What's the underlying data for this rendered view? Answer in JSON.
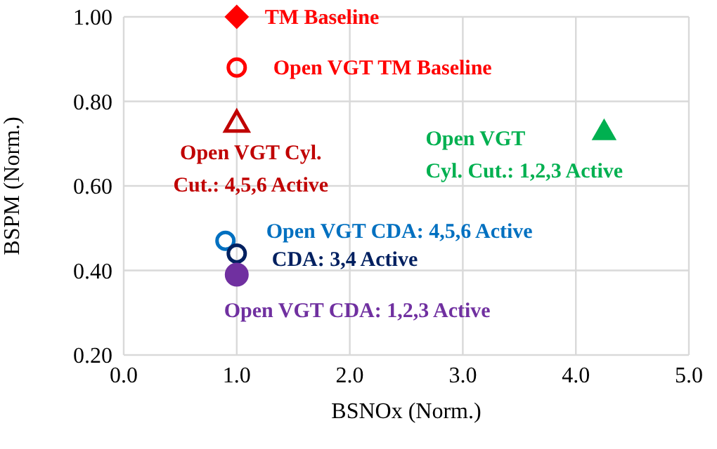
{
  "chart_data": {
    "type": "scatter",
    "xlabel": "BSNOx  (Norm.)",
    "ylabel": "BSPM (Norm.)",
    "xlim": [
      0,
      5
    ],
    "xticks": [
      {
        "value": 0,
        "label": "0.0"
      },
      {
        "value": 1,
        "label": "1.0"
      },
      {
        "value": 2,
        "label": "2.0"
      },
      {
        "value": 3,
        "label": "3.0"
      },
      {
        "value": 4,
        "label": "4.0"
      },
      {
        "value": 5,
        "label": "5.0"
      }
    ],
    "ylim": [
      0.2,
      1.0
    ],
    "yticks": [
      {
        "value": 0.2,
        "label": "0.20"
      },
      {
        "value": 0.4,
        "label": "0.40"
      },
      {
        "value": 0.6,
        "label": "0.60"
      },
      {
        "value": 0.8,
        "label": "0.80"
      },
      {
        "value": 1.0,
        "label": "1.00"
      }
    ],
    "grid": true,
    "series": [
      {
        "name": "TM Baseline",
        "color": "#ff0000",
        "marker": "diamond",
        "x": [
          1.0
        ],
        "values": [
          1.0
        ]
      },
      {
        "name": "Open VGT TM Baseline",
        "color": "#ff0000",
        "marker": "circle",
        "x": [
          1.0
        ],
        "values": [
          0.88
        ]
      },
      {
        "name": "Open VGT Cyl. Cut.: 4,5,6 Active",
        "color": "#c00000",
        "marker": "triangle",
        "x": [
          1.0
        ],
        "values": [
          0.75
        ]
      },
      {
        "name": "Open VGT Cyl. Cut.: 1,2,3 Active",
        "color": "#00b050",
        "marker": "triangle",
        "x": [
          4.25
        ],
        "values": [
          0.73
        ]
      },
      {
        "name": "Open VGT CDA: 4,5,6 Active",
        "color": "#0070c0",
        "marker": "circle",
        "x": [
          0.9
        ],
        "values": [
          0.47
        ]
      },
      {
        "name": "CDA: 3,4 Active",
        "color": "#002060",
        "marker": "circle",
        "x": [
          1.0
        ],
        "values": [
          0.44
        ]
      },
      {
        "name": "Open VGT CDA: 1,2,3 Active",
        "color": "#7030a0",
        "marker": "circle",
        "x": [
          1.0
        ],
        "values": [
          0.39
        ]
      }
    ]
  }
}
